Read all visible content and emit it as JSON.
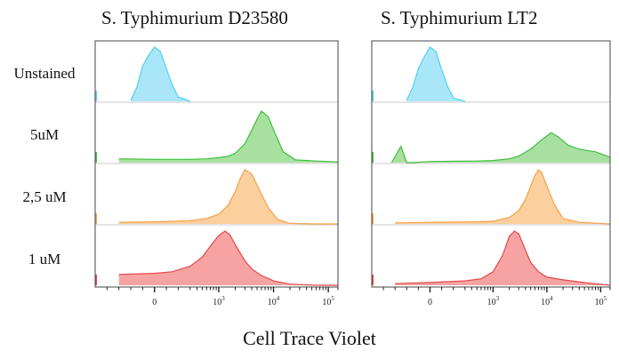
{
  "chart_data": {
    "type": "area",
    "title": "",
    "xlabel": "Cell Trace Violet",
    "ylabel": "",
    "x_scale": "biexponential",
    "x_ticks": [
      "0",
      "10^3",
      "10^4",
      "10^5"
    ],
    "xlim": [
      -500,
      150000
    ],
    "grid": false,
    "legend": "none",
    "rows": [
      "Unstained",
      "5uM",
      "2,5 uM",
      "1 uM"
    ],
    "row_colors": {
      "Unstained": "#4fd1f0",
      "5uM": "#3fbf3f",
      "2,5 uM": "#f2a24a",
      "1 uM": "#e24848"
    },
    "row_fill_colors": {
      "Unstained": "#a9e6f8",
      "5uM": "#a8e0a0",
      "2,5 uM": "#fbcf9e",
      "1 uM": "#f7a3a3"
    },
    "panels": [
      {
        "title": "S. Typhimurium D23580",
        "series": [
          {
            "name": "Unstained",
            "x": [
              -200,
              -150,
              -100,
              -50,
              0,
              50,
              100,
              150,
              200,
              300
            ],
            "y": [
              0.02,
              0.25,
              0.65,
              0.85,
              1.0,
              0.92,
              0.6,
              0.3,
              0.08,
              0.0
            ]
          },
          {
            "name": "5uM",
            "x": [
              -300,
              0,
              300,
              600,
              1000,
              1500,
              2000,
              3000,
              4000,
              5000,
              6000,
              8000,
              10000,
              15000,
              25000,
              60000,
              150000
            ],
            "y": [
              0.07,
              0.06,
              0.06,
              0.07,
              0.09,
              0.12,
              0.17,
              0.35,
              0.6,
              0.8,
              0.95,
              0.85,
              0.6,
              0.2,
              0.05,
              0.03,
              0.01
            ]
          },
          {
            "name": "2,5 uM",
            "x": [
              -300,
              0,
              300,
              600,
              1000,
              1500,
              2000,
              2500,
              3000,
              4000,
              5000,
              6000,
              8000,
              12000,
              20000,
              60000,
              150000
            ],
            "y": [
              0.03,
              0.04,
              0.06,
              0.1,
              0.18,
              0.35,
              0.6,
              0.85,
              1.0,
              0.92,
              0.72,
              0.55,
              0.3,
              0.08,
              0.01,
              0.0,
              0.0
            ]
          },
          {
            "name": "1 uM",
            "x": [
              -300,
              0,
              150,
              300,
              500,
              700,
              1000,
              1300,
              1600,
              2000,
              3000,
              4000,
              6000,
              10000,
              20000,
              60000,
              150000
            ],
            "y": [
              0.2,
              0.22,
              0.25,
              0.35,
              0.52,
              0.72,
              0.92,
              1.0,
              0.93,
              0.75,
              0.45,
              0.3,
              0.18,
              0.08,
              0.02,
              0.0,
              0.0
            ]
          }
        ]
      },
      {
        "title": "S. Typhimurium LT2",
        "series": [
          {
            "name": "Unstained",
            "x": [
              -200,
              -150,
              -100,
              -50,
              0,
              50,
              100,
              150,
              200,
              300
            ],
            "y": [
              0.02,
              0.25,
              0.6,
              0.82,
              1.0,
              0.92,
              0.58,
              0.28,
              0.06,
              0.0
            ]
          },
          {
            "name": "5uM",
            "x": [
              -330,
              -250,
              -200,
              -150,
              0,
              500,
              1000,
              2000,
              3000,
              5000,
              8000,
              12000,
              16000,
              25000,
              40000,
              80000,
              150000
            ],
            "y": [
              0.0,
              0.3,
              0.0,
              0.0,
              0.02,
              0.03,
              0.04,
              0.07,
              0.12,
              0.25,
              0.42,
              0.55,
              0.48,
              0.32,
              0.25,
              0.2,
              0.1
            ]
          },
          {
            "name": "2,5 uM",
            "x": [
              -300,
              0,
              500,
              1000,
              2000,
              3000,
              4000,
              5000,
              6000,
              7000,
              8000,
              10000,
              14000,
              20000,
              40000,
              150000
            ],
            "y": [
              0.02,
              0.03,
              0.04,
              0.05,
              0.12,
              0.25,
              0.45,
              0.7,
              0.9,
              1.0,
              0.95,
              0.7,
              0.35,
              0.1,
              0.03,
              0.0
            ]
          },
          {
            "name": "1 uM",
            "x": [
              -300,
              0,
              300,
              600,
              1000,
              1500,
              2000,
              2500,
              3000,
              4000,
              5000,
              7000,
              10000,
              20000,
              60000,
              150000
            ],
            "y": [
              0.03,
              0.05,
              0.08,
              0.12,
              0.25,
              0.55,
              0.9,
              1.0,
              0.95,
              0.65,
              0.42,
              0.25,
              0.15,
              0.1,
              0.04,
              0.0
            ]
          }
        ]
      }
    ]
  }
}
